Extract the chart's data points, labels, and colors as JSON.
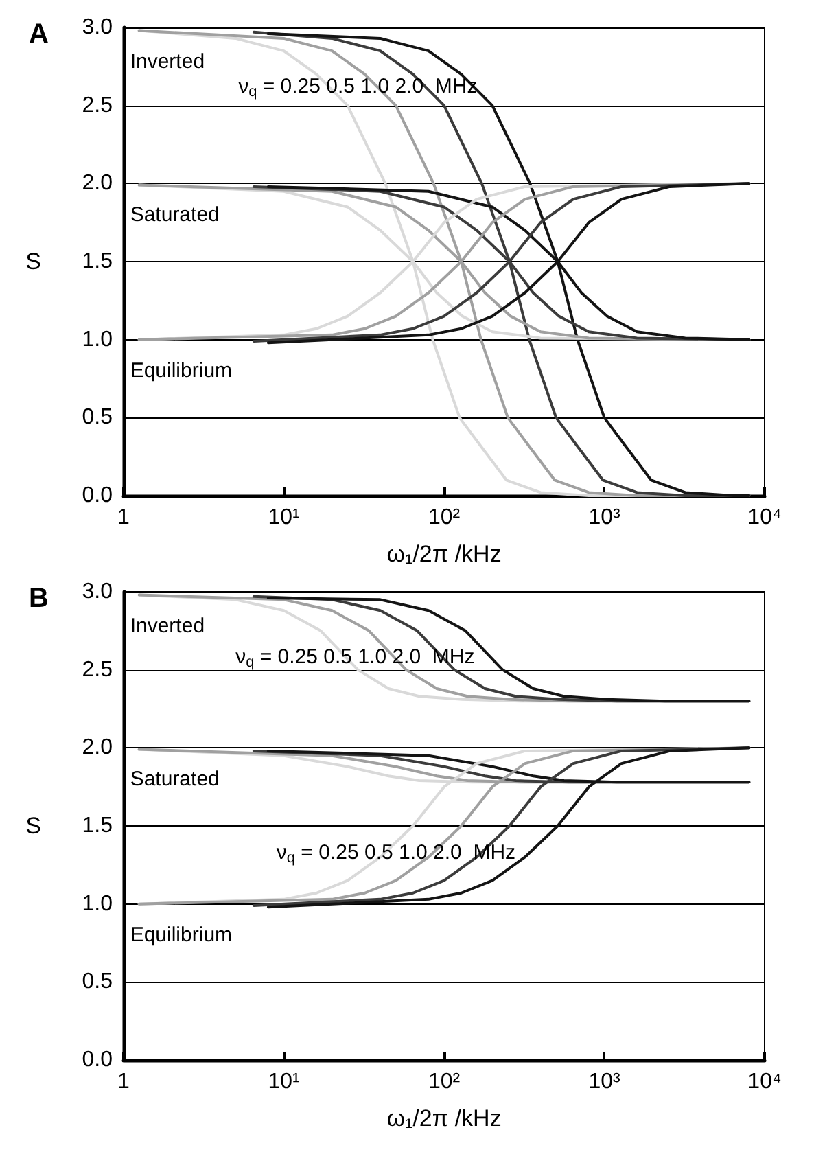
{
  "chart_data": [
    {
      "type": "line",
      "title": "A",
      "xlabel": "ω₁/2π /kHz",
      "ylabel": "S",
      "log": "x",
      "grid": "y",
      "marker": "none",
      "line_style": "solid",
      "xlim": [
        1,
        10000
      ],
      "xticks": [
        1,
        {
          "value": 10,
          "label": "10¹"
        },
        {
          "value": 100,
          "label": "10²"
        },
        {
          "value": 1000,
          "label": "10³"
        },
        {
          "value": 10000,
          "label": "10⁴"
        }
      ],
      "ylim": [
        0,
        3
      ],
      "yticks": [
        {
          "value": 0,
          "label": "0.0"
        },
        {
          "value": 0.5,
          "label": "0.5"
        },
        {
          "value": 1,
          "label": "1.0"
        },
        {
          "value": 1.5,
          "label": "1.5"
        },
        {
          "value": 2,
          "label": "2.0"
        },
        {
          "value": 2.5,
          "label": "2.5"
        },
        {
          "value": 3,
          "label": "3.0"
        }
      ],
      "annotations": [
        "Inverted",
        "Saturated",
        "Equilibrium",
        "ν$_{q}$ = 0.25 0.5 1.0 2.0  MHz"
      ],
      "series": [
        {
          "color": "#d9d9d9",
          "x": [
            1.25,
            5,
            10,
            16,
            25,
            43,
            64,
            85,
            125,
            166,
            245,
            400,
            800,
            8000
          ],
          "values": [
            2.98,
            2.93,
            2.85,
            2.7,
            2.5,
            2.0,
            1.5,
            1.0,
            0.5,
            0.33,
            0.1,
            0.02,
            0,
            0
          ]
        },
        {
          "color": "#a0a0a0",
          "x": [
            1.25,
            10,
            20,
            32,
            50,
            86,
            128,
            170,
            250,
            332,
            490,
            800,
            1600,
            8000
          ],
          "values": [
            2.98,
            2.93,
            2.85,
            2.7,
            2.5,
            2.0,
            1.5,
            1.0,
            0.5,
            0.33,
            0.1,
            0.02,
            0,
            0
          ]
        },
        {
          "color": "#3c3c3c",
          "x": [
            6.5,
            20,
            40,
            64,
            100,
            172,
            256,
            340,
            500,
            664,
            980,
            1600,
            3200,
            8000
          ],
          "values": [
            2.97,
            2.93,
            2.85,
            2.7,
            2.5,
            2.0,
            1.5,
            1.0,
            0.5,
            0.33,
            0.1,
            0.02,
            0,
            0
          ]
        },
        {
          "color": "#141414",
          "x": [
            8,
            40,
            80,
            128,
            200,
            344,
            512,
            680,
            1000,
            1328,
            1960,
            3200,
            6400,
            8000
          ],
          "values": [
            2.96,
            2.93,
            2.85,
            2.7,
            2.5,
            2.0,
            1.5,
            1.0,
            0.5,
            0.33,
            0.1,
            0.02,
            0,
            0
          ]
        },
        {
          "color": "#d9d9d9",
          "x": [
            1.25,
            10,
            25,
            40,
            64,
            90,
            130,
            200,
            400,
            8000
          ],
          "values": [
            1.99,
            1.95,
            1.85,
            1.7,
            1.5,
            1.3,
            1.15,
            1.05,
            1.01,
            1.0
          ]
        },
        {
          "color": "#a0a0a0",
          "x": [
            1.25,
            20,
            50,
            80,
            128,
            180,
            260,
            400,
            800,
            8000
          ],
          "values": [
            1.99,
            1.95,
            1.85,
            1.7,
            1.5,
            1.3,
            1.15,
            1.05,
            1.01,
            1.0
          ]
        },
        {
          "color": "#3c3c3c",
          "x": [
            6.5,
            40,
            100,
            160,
            256,
            360,
            520,
            800,
            1600,
            8000
          ],
          "values": [
            1.98,
            1.95,
            1.85,
            1.7,
            1.5,
            1.3,
            1.15,
            1.05,
            1.01,
            1.0
          ]
        },
        {
          "color": "#141414",
          "x": [
            8,
            80,
            200,
            320,
            512,
            720,
            1040,
            1600,
            3200,
            8000
          ],
          "values": [
            1.98,
            1.95,
            1.85,
            1.7,
            1.5,
            1.3,
            1.15,
            1.05,
            1.01,
            1.0
          ]
        },
        {
          "color": "#d9d9d9",
          "x": [
            1.25,
            10,
            16,
            25,
            40,
            64,
            100,
            160,
            320,
            8000
          ],
          "values": [
            1.0,
            1.03,
            1.07,
            1.15,
            1.3,
            1.5,
            1.75,
            1.9,
            1.98,
            2.0
          ]
        },
        {
          "color": "#a0a0a0",
          "x": [
            1.25,
            20,
            32,
            50,
            80,
            128,
            200,
            320,
            640,
            8000
          ],
          "values": [
            1.0,
            1.03,
            1.07,
            1.15,
            1.3,
            1.5,
            1.75,
            1.9,
            1.98,
            2.0
          ]
        },
        {
          "color": "#3c3c3c",
          "x": [
            6.5,
            40,
            64,
            100,
            160,
            256,
            400,
            640,
            1280,
            8000
          ],
          "values": [
            0.99,
            1.03,
            1.07,
            1.15,
            1.3,
            1.5,
            1.75,
            1.9,
            1.98,
            2.0
          ]
        },
        {
          "color": "#141414",
          "x": [
            8,
            80,
            128,
            200,
            320,
            512,
            800,
            1280,
            2560,
            8000
          ],
          "values": [
            0.98,
            1.03,
            1.07,
            1.15,
            1.3,
            1.5,
            1.75,
            1.9,
            1.98,
            2.0
          ]
        }
      ]
    },
    {
      "type": "line",
      "title": "B",
      "xlabel": "ω₁/2π /kHz",
      "ylabel": "S",
      "log": "x",
      "grid": "y",
      "marker": "none",
      "line_style": "solid",
      "xlim": [
        1,
        10000
      ],
      "xticks": [
        1,
        {
          "value": 10,
          "label": "10¹"
        },
        {
          "value": 100,
          "label": "10²"
        },
        {
          "value": 1000,
          "label": "10³"
        },
        {
          "value": 10000,
          "label": "10⁴"
        }
      ],
      "ylim": [
        0,
        3
      ],
      "yticks": [
        {
          "value": 0,
          "label": "0.0"
        },
        {
          "value": 0.5,
          "label": "0.5"
        },
        {
          "value": 1,
          "label": "1.0"
        },
        {
          "value": 1.5,
          "label": "1.5"
        },
        {
          "value": 2,
          "label": "2.0"
        },
        {
          "value": 2.5,
          "label": "2.5"
        },
        {
          "value": 3,
          "label": "3.0"
        }
      ],
      "annotations": [
        "Inverted",
        "Saturated",
        "Equilibrium",
        "ν$_{q}$ = 0.25 0.5 1.0 2.0  MHz",
        "ν$_{q}$ = 0.25 0.5 1.0 2.0  MHz"
      ],
      "series": [
        {
          "color": "#d9d9d9",
          "x": [
            1.25,
            5,
            10,
            17,
            29,
            45,
            70,
            130,
            300,
            8000
          ],
          "values": [
            2.98,
            2.95,
            2.88,
            2.75,
            2.5,
            2.38,
            2.33,
            2.31,
            2.3,
            2.3
          ]
        },
        {
          "color": "#a0a0a0",
          "x": [
            1.25,
            10,
            20,
            34,
            58,
            90,
            140,
            260,
            600,
            8000
          ],
          "values": [
            2.98,
            2.95,
            2.88,
            2.75,
            2.5,
            2.38,
            2.33,
            2.31,
            2.3,
            2.3
          ]
        },
        {
          "color": "#3c3c3c",
          "x": [
            6.5,
            20,
            40,
            68,
            116,
            180,
            280,
            520,
            1200,
            8000
          ],
          "values": [
            2.97,
            2.95,
            2.88,
            2.75,
            2.5,
            2.38,
            2.33,
            2.31,
            2.3,
            2.3
          ]
        },
        {
          "color": "#141414",
          "x": [
            8,
            40,
            80,
            136,
            232,
            360,
            560,
            1040,
            2400,
            8000
          ],
          "values": [
            2.96,
            2.95,
            2.88,
            2.75,
            2.5,
            2.38,
            2.33,
            2.31,
            2.3,
            2.3
          ]
        },
        {
          "color": "#d9d9d9",
          "x": [
            1.25,
            10,
            25,
            45,
            70,
            150,
            8000
          ],
          "values": [
            1.99,
            1.95,
            1.88,
            1.82,
            1.79,
            1.78,
            1.78
          ]
        },
        {
          "color": "#a0a0a0",
          "x": [
            1.25,
            20,
            50,
            90,
            140,
            300,
            8000
          ],
          "values": [
            1.99,
            1.95,
            1.88,
            1.82,
            1.79,
            1.78,
            1.78
          ]
        },
        {
          "color": "#3c3c3c",
          "x": [
            6.5,
            40,
            100,
            180,
            280,
            600,
            8000
          ],
          "values": [
            1.98,
            1.95,
            1.88,
            1.82,
            1.79,
            1.78,
            1.78
          ]
        },
        {
          "color": "#141414",
          "x": [
            8,
            80,
            200,
            360,
            560,
            1200,
            8000
          ],
          "values": [
            1.98,
            1.95,
            1.88,
            1.82,
            1.79,
            1.78,
            1.78
          ]
        },
        {
          "color": "#d9d9d9",
          "x": [
            1.25,
            10,
            16,
            25,
            40,
            64,
            100,
            160,
            320,
            8000
          ],
          "values": [
            1.0,
            1.03,
            1.07,
            1.15,
            1.3,
            1.5,
            1.75,
            1.9,
            1.98,
            2.0
          ]
        },
        {
          "color": "#a0a0a0",
          "x": [
            1.25,
            20,
            32,
            50,
            80,
            128,
            200,
            320,
            640,
            8000
          ],
          "values": [
            1.0,
            1.03,
            1.07,
            1.15,
            1.3,
            1.5,
            1.75,
            1.9,
            1.98,
            2.0
          ]
        },
        {
          "color": "#3c3c3c",
          "x": [
            6.5,
            40,
            64,
            100,
            160,
            256,
            400,
            640,
            1280,
            8000
          ],
          "values": [
            0.99,
            1.03,
            1.07,
            1.15,
            1.3,
            1.5,
            1.75,
            1.9,
            1.98,
            2.0
          ]
        },
        {
          "color": "#141414",
          "x": [
            8,
            80,
            128,
            200,
            320,
            512,
            800,
            1280,
            2560,
            8000
          ],
          "values": [
            0.98,
            1.03,
            1.07,
            1.15,
            1.3,
            1.5,
            1.75,
            1.9,
            1.98,
            2.0
          ]
        }
      ]
    }
  ]
}
